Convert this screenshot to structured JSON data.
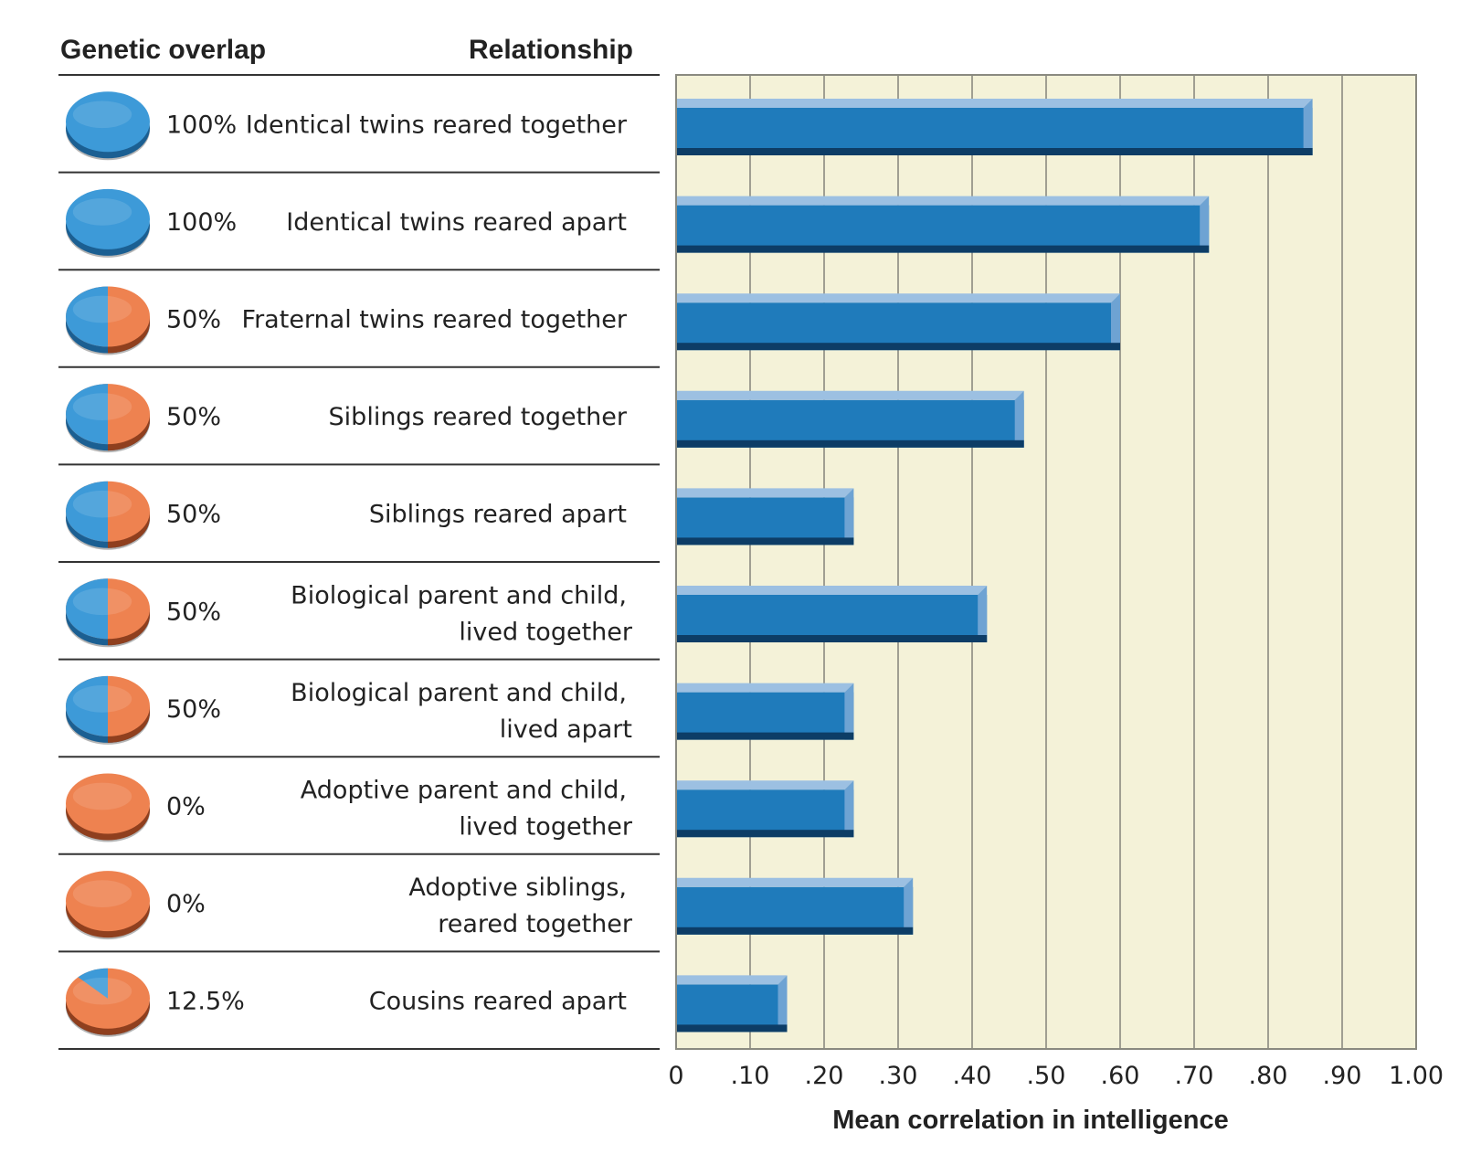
{
  "chart_data": {
    "type": "bar",
    "orientation": "horizontal",
    "headers": {
      "genetic_overlap": "Genetic overlap",
      "relationship": "Relationship"
    },
    "xlabel": "Mean correlation in intelligence",
    "xlim": [
      0,
      1.0
    ],
    "ticks": [
      "0",
      ".10",
      ".20",
      ".30",
      ".40",
      ".50",
      ".60",
      ".70",
      ".80",
      ".90",
      "1.00"
    ],
    "grid": true,
    "colors": {
      "bar": "#1f7bbb",
      "bar_top": "#9cc0e2",
      "bar_bottom": "#0d3d66",
      "plot_bg": "#f4f2d8",
      "pie_blue": "#3d9ad8",
      "pie_orange": "#ee8250"
    },
    "rows": [
      {
        "overlap": "100%",
        "overlap_fraction": 1.0,
        "lines": [
          "Identical twins reared together"
        ],
        "value": 0.86
      },
      {
        "overlap": "100%",
        "overlap_fraction": 1.0,
        "lines": [
          "Identical twins reared apart"
        ],
        "value": 0.72
      },
      {
        "overlap": "50%",
        "overlap_fraction": 0.5,
        "lines": [
          "Fraternal twins reared together"
        ],
        "value": 0.6
      },
      {
        "overlap": "50%",
        "overlap_fraction": 0.5,
        "lines": [
          "Siblings reared together"
        ],
        "value": 0.47
      },
      {
        "overlap": "50%",
        "overlap_fraction": 0.5,
        "lines": [
          "Siblings reared apart"
        ],
        "value": 0.24
      },
      {
        "overlap": "50%",
        "overlap_fraction": 0.5,
        "lines": [
          "Biological parent and child,",
          "lived together"
        ],
        "value": 0.42
      },
      {
        "overlap": "50%",
        "overlap_fraction": 0.5,
        "lines": [
          "Biological parent and child,",
          "lived apart"
        ],
        "value": 0.24
      },
      {
        "overlap": "0%",
        "overlap_fraction": 0.0,
        "lines": [
          "Adoptive parent and child,",
          "lived together"
        ],
        "value": 0.24
      },
      {
        "overlap": "0%",
        "overlap_fraction": 0.0,
        "lines": [
          "Adoptive siblings,",
          "reared together"
        ],
        "value": 0.32
      },
      {
        "overlap": "12.5%",
        "overlap_fraction": 0.125,
        "lines": [
          "Cousins reared apart"
        ],
        "value": 0.15
      }
    ]
  }
}
